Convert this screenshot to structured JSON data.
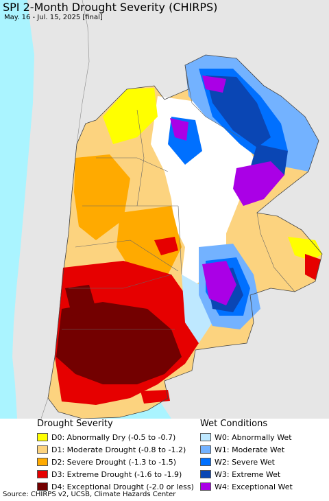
{
  "title": "SPI 2-Month Drought Severity (CHIRPS)",
  "subtitle": "May. 16 - Jul. 15, 2025 [final]",
  "colors": {
    "ocean": "#aaf4ff",
    "outside_land": "#e6e6e6",
    "no_data": "#ffffff"
  },
  "legend": {
    "drought": {
      "heading": "Drought Severity",
      "items": [
        {
          "label": "D0: Abnormally Dry (-0.5 to -0.7)",
          "color": "#ffff00"
        },
        {
          "label": "D1: Moderate Drought (-0.8 to -1.2)",
          "color": "#fcd37f"
        },
        {
          "label": "D2: Severe Drought (-1.3 to -1.5)",
          "color": "#ffaa00"
        },
        {
          "label": "D3: Extreme Drought (-1.6 to -1.9)",
          "color": "#e60000"
        },
        {
          "label": "D4: Exceptional Drought (-2.0 or less)",
          "color": "#730000"
        }
      ]
    },
    "wet": {
      "heading": "Wet Conditions",
      "items": [
        {
          "label": "W0: Abnormally Wet",
          "color": "#bee8ff"
        },
        {
          "label": "W1: Moderate Wet",
          "color": "#73b2ff"
        },
        {
          "label": "W2: Severe Wet",
          "color": "#0070ff"
        },
        {
          "label": "W3: Extreme Wet",
          "color": "#0a46b4"
        },
        {
          "label": "W4: Exceptional Wet",
          "color": "#aa00e6"
        }
      ]
    }
  },
  "source": "Source: CHIRPS v2, UCSB, Climate Hazards Center"
}
